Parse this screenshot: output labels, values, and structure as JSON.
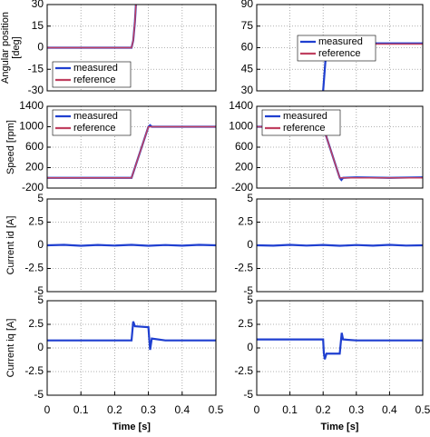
{
  "chart_data": [
    {
      "type": "line",
      "ylabel": [
        "Angular position",
        "[deg]"
      ],
      "xlim": [
        0,
        0.5
      ],
      "ylim": [
        -30,
        30
      ],
      "yticks": [
        -30,
        -15,
        0,
        15,
        30
      ],
      "grid": true,
      "legend": "lower left",
      "series": [
        {
          "name": "measured",
          "color": "#1f3fd0",
          "x": [
            0,
            0.1,
            0.2,
            0.25,
            0.255,
            0.26,
            0.263
          ],
          "values": [
            0,
            0,
            0,
            0,
            5,
            18,
            30
          ]
        },
        {
          "name": "reference",
          "color": "#c04060",
          "x": [
            0,
            0.1,
            0.2,
            0.25,
            0.255,
            0.26,
            0.263
          ],
          "values": [
            0,
            0,
            0,
            0,
            5,
            18,
            30
          ]
        }
      ]
    },
    {
      "type": "line",
      "xlim": [
        0,
        0.5
      ],
      "ylim": [
        30,
        90
      ],
      "yticks": [
        30,
        45,
        60,
        75,
        90
      ],
      "grid": true,
      "legend": "right",
      "series": [
        {
          "name": "measured",
          "color": "#1f3fd0",
          "x": [
            0.2,
            0.205,
            0.21,
            0.215,
            0.3,
            0.4,
            0.5
          ],
          "values": [
            30,
            45,
            60,
            62.5,
            63,
            63,
            63
          ]
        },
        {
          "name": "reference",
          "color": "#c04060",
          "x": [
            0.21,
            0.3,
            0.4,
            0.5
          ],
          "values": [
            62.5,
            62.5,
            62.5,
            62.5
          ]
        }
      ]
    },
    {
      "type": "line",
      "ylabel": [
        "Speed [rpm]"
      ],
      "xlim": [
        0,
        0.5
      ],
      "ylim": [
        -200,
        1400
      ],
      "yticks": [
        -200,
        200,
        600,
        1000,
        1400
      ],
      "grid": true,
      "legend": "upper left",
      "series": [
        {
          "name": "measured",
          "color": "#1f3fd0",
          "x": [
            0,
            0.1,
            0.2,
            0.25,
            0.3,
            0.305,
            0.31,
            0.35,
            0.4,
            0.5
          ],
          "values": [
            0,
            0,
            0,
            0,
            1000,
            1030,
            1000,
            1000,
            1000,
            1000
          ]
        },
        {
          "name": "reference",
          "color": "#c04060",
          "x": [
            0,
            0.25,
            0.3,
            0.5
          ],
          "values": [
            0,
            0,
            1000,
            1000
          ]
        }
      ]
    },
    {
      "type": "line",
      "xlim": [
        0,
        0.5
      ],
      "ylim": [
        -200,
        1400
      ],
      "yticks": [
        -200,
        200,
        600,
        1000,
        1400
      ],
      "grid": true,
      "legend": "upper left",
      "series": [
        {
          "name": "measured",
          "color": "#1f3fd0",
          "x": [
            0,
            0.1,
            0.2,
            0.25,
            0.255,
            0.26,
            0.3,
            0.4,
            0.5
          ],
          "values": [
            1000,
            1000,
            1000,
            0,
            -40,
            0,
            10,
            0,
            10
          ]
        },
        {
          "name": "reference",
          "color": "#c04060",
          "x": [
            0,
            0.2,
            0.25,
            0.5
          ],
          "values": [
            1000,
            1000,
            0,
            0
          ]
        }
      ]
    },
    {
      "type": "line",
      "ylabel": [
        "Current id [A]"
      ],
      "xlim": [
        0,
        0.5
      ],
      "ylim": [
        -5,
        5
      ],
      "yticks": [
        -5,
        -2.5,
        0,
        2.5,
        5
      ],
      "grid": true,
      "series": [
        {
          "name": "measured",
          "color": "#1f3fd0",
          "x": [
            0,
            0.05,
            0.1,
            0.15,
            0.2,
            0.25,
            0.3,
            0.35,
            0.4,
            0.45,
            0.5
          ],
          "values": [
            0,
            0.05,
            -0.05,
            0.04,
            -0.03,
            0.05,
            -0.05,
            0.03,
            -0.04,
            0.05,
            0
          ]
        }
      ]
    },
    {
      "type": "line",
      "xlim": [
        0,
        0.5
      ],
      "ylim": [
        -5,
        5
      ],
      "yticks": [
        -5,
        -2.5,
        0,
        2.5,
        5
      ],
      "grid": true,
      "series": [
        {
          "name": "measured",
          "color": "#1f3fd0",
          "x": [
            0,
            0.05,
            0.1,
            0.15,
            0.2,
            0.25,
            0.3,
            0.35,
            0.4,
            0.45,
            0.5
          ],
          "values": [
            0,
            -0.04,
            0.05,
            -0.03,
            0.04,
            -0.05,
            0.03,
            -0.04,
            0.05,
            -0.03,
            0
          ]
        }
      ]
    },
    {
      "type": "line",
      "ylabel": [
        "Current iq [A]"
      ],
      "xlabel": "Time [s]",
      "xlim": [
        0,
        0.5
      ],
      "ylim": [
        -5,
        5
      ],
      "xticks": [
        0,
        0.1,
        0.2,
        0.3,
        0.4,
        0.5
      ],
      "yticks": [
        -5,
        -2.5,
        0,
        2.5,
        5
      ],
      "grid": true,
      "series": [
        {
          "name": "measured",
          "color": "#1f3fd0",
          "x": [
            0,
            0.1,
            0.2,
            0.25,
            0.255,
            0.26,
            0.3,
            0.302,
            0.305,
            0.31,
            0.35,
            0.4,
            0.5
          ],
          "values": [
            0.8,
            0.8,
            0.8,
            0.8,
            2.8,
            2.3,
            2.2,
            1.2,
            -0.2,
            1.0,
            0.8,
            0.8,
            0.8
          ]
        }
      ]
    },
    {
      "type": "line",
      "xlabel": "Time [s]",
      "xlim": [
        0,
        0.5
      ],
      "ylim": [
        -5,
        5
      ],
      "xticks": [
        0,
        0.1,
        0.2,
        0.3,
        0.4,
        0.5
      ],
      "yticks": [
        -5,
        -2.5,
        0,
        2.5,
        5
      ],
      "grid": true,
      "series": [
        {
          "name": "measured",
          "color": "#1f3fd0",
          "x": [
            0,
            0.1,
            0.2,
            0.202,
            0.205,
            0.21,
            0.25,
            0.253,
            0.256,
            0.26,
            0.3,
            0.4,
            0.5
          ],
          "values": [
            0.9,
            0.9,
            0.9,
            -0.5,
            -1.2,
            -0.6,
            -0.6,
            0.5,
            1.6,
            0.9,
            0.8,
            0.8,
            0.8
          ]
        }
      ]
    }
  ]
}
